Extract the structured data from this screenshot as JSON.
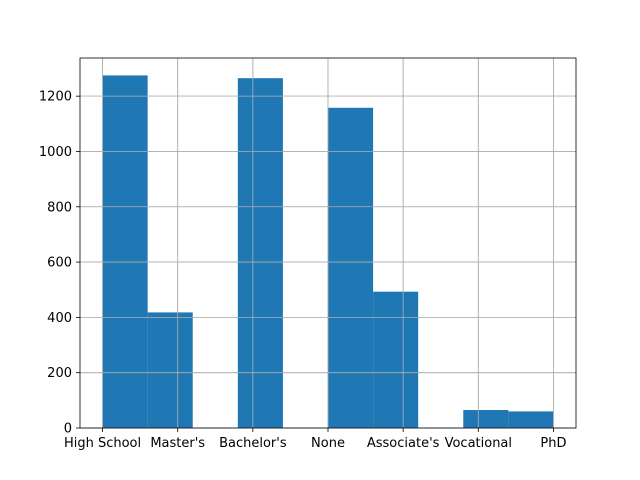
{
  "chart_data": {
    "type": "bar",
    "title": "",
    "xlabel": "",
    "ylabel": "",
    "grid": true,
    "color": "#1f77b4",
    "categories": [
      "High School",
      "Master's",
      "Bachelor's",
      "None",
      "Associate's",
      "Vocational",
      "PhD"
    ],
    "x_tick_values": [
      0,
      1,
      2,
      3,
      4,
      5,
      6
    ],
    "bins": [
      {
        "start": 0.0,
        "end": 0.6,
        "value": 1275
      },
      {
        "start": 0.6,
        "end": 1.2,
        "value": 418
      },
      {
        "start": 1.2,
        "end": 1.8,
        "value": 0
      },
      {
        "start": 1.8,
        "end": 2.4,
        "value": 1265
      },
      {
        "start": 2.4,
        "end": 3.0,
        "value": 0
      },
      {
        "start": 3.0,
        "end": 3.6,
        "value": 1158
      },
      {
        "start": 3.6,
        "end": 4.2,
        "value": 493
      },
      {
        "start": 4.2,
        "end": 4.8,
        "value": 0
      },
      {
        "start": 4.8,
        "end": 5.4,
        "value": 65
      },
      {
        "start": 5.4,
        "end": 6.0,
        "value": 60
      }
    ],
    "xlim": [
      -0.3,
      6.3
    ],
    "ylim": [
      0,
      1338
    ],
    "y_ticks": [
      0,
      200,
      400,
      600,
      800,
      1000,
      1200
    ]
  }
}
